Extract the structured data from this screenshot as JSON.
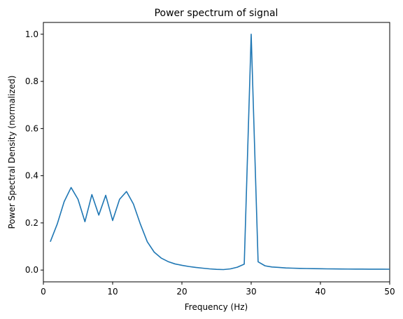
{
  "chart_data": {
    "type": "line",
    "title": "Power spectrum of signal",
    "xlabel": "Frequency (Hz)",
    "ylabel": "Power Spectral Density (normalized)",
    "xlim": [
      0,
      50
    ],
    "ylim": [
      -0.05,
      1.05
    ],
    "xticks": [
      0,
      10,
      20,
      30,
      40,
      50
    ],
    "yticks": [
      0.0,
      0.2,
      0.4,
      0.6,
      0.8,
      1.0
    ],
    "xtick_labels": [
      "0",
      "10",
      "20",
      "30",
      "40",
      "50"
    ],
    "ytick_labels": [
      "0.0",
      "0.2",
      "0.4",
      "0.6",
      "0.8",
      "1.0"
    ],
    "grid": false,
    "line_color": "#1f77b4",
    "series": [
      {
        "x": [
          1,
          2,
          3,
          4,
          5,
          6,
          7,
          8,
          9,
          10,
          11,
          12,
          13,
          14,
          15,
          16,
          17,
          18,
          19,
          20,
          21,
          22,
          23,
          24,
          25,
          26,
          27,
          28,
          29,
          30,
          31,
          32,
          33,
          34,
          35,
          36,
          37,
          38,
          39,
          40,
          41,
          42,
          43,
          44,
          45,
          46,
          47,
          48,
          49,
          50
        ],
        "values": [
          0.12,
          0.195,
          0.29,
          0.35,
          0.3,
          0.205,
          0.32,
          0.233,
          0.317,
          0.21,
          0.3,
          0.333,
          0.28,
          0.195,
          0.12,
          0.076,
          0.051,
          0.036,
          0.026,
          0.02,
          0.015,
          0.011,
          0.008,
          0.005,
          0.003,
          0.002,
          0.005,
          0.012,
          0.025,
          1.0,
          0.035,
          0.018,
          0.013,
          0.011,
          0.009,
          0.008,
          0.007,
          0.0065,
          0.006,
          0.0055,
          0.005,
          0.0048,
          0.0045,
          0.0043,
          0.0041,
          0.004,
          0.0038,
          0.0037,
          0.0036,
          0.0035
        ]
      }
    ]
  }
}
